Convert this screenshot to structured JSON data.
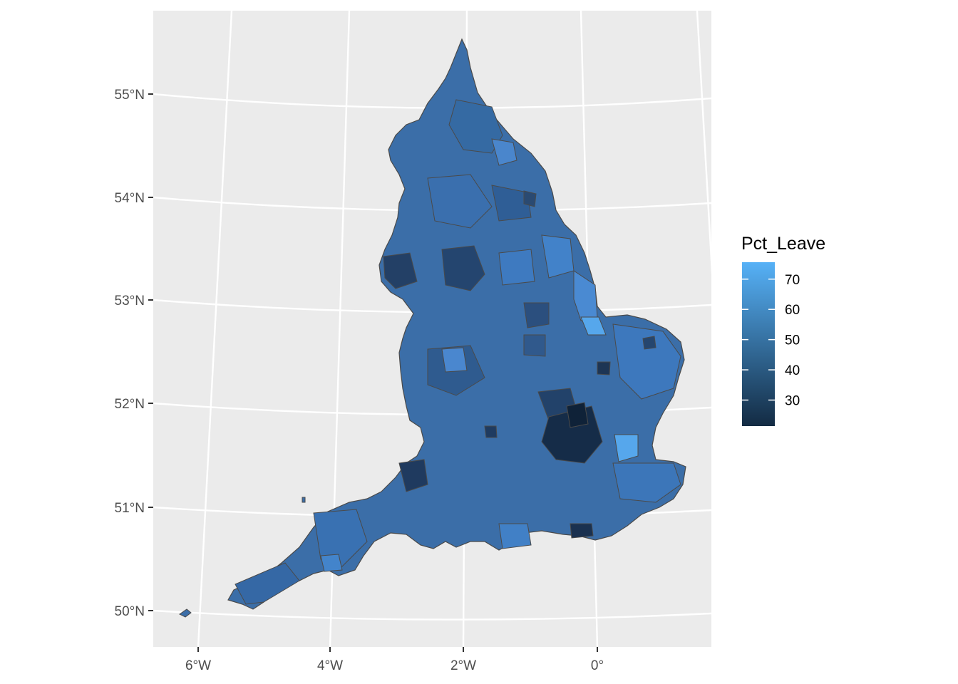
{
  "chart_data": {
    "type": "choropleth map",
    "projection": "conic (graticule curved)",
    "background": "grey panel with white graticule",
    "lat_ticks": [
      "50°N",
      "51°N",
      "52°N",
      "53°N",
      "54°N",
      "55°N"
    ],
    "lon_ticks": [
      "6°W",
      "4°W",
      "2°W",
      "0°"
    ],
    "legend": {
      "title": "Pct_Leave",
      "position": "right",
      "ticks": [
        "70",
        "60",
        "50",
        "40",
        "30"
      ],
      "tick_values": [
        70,
        60,
        50,
        40,
        30
      ],
      "range": [
        21.4,
        75.6
      ],
      "color_low": "#132B43",
      "color_high": "#56B1F7"
    }
  }
}
